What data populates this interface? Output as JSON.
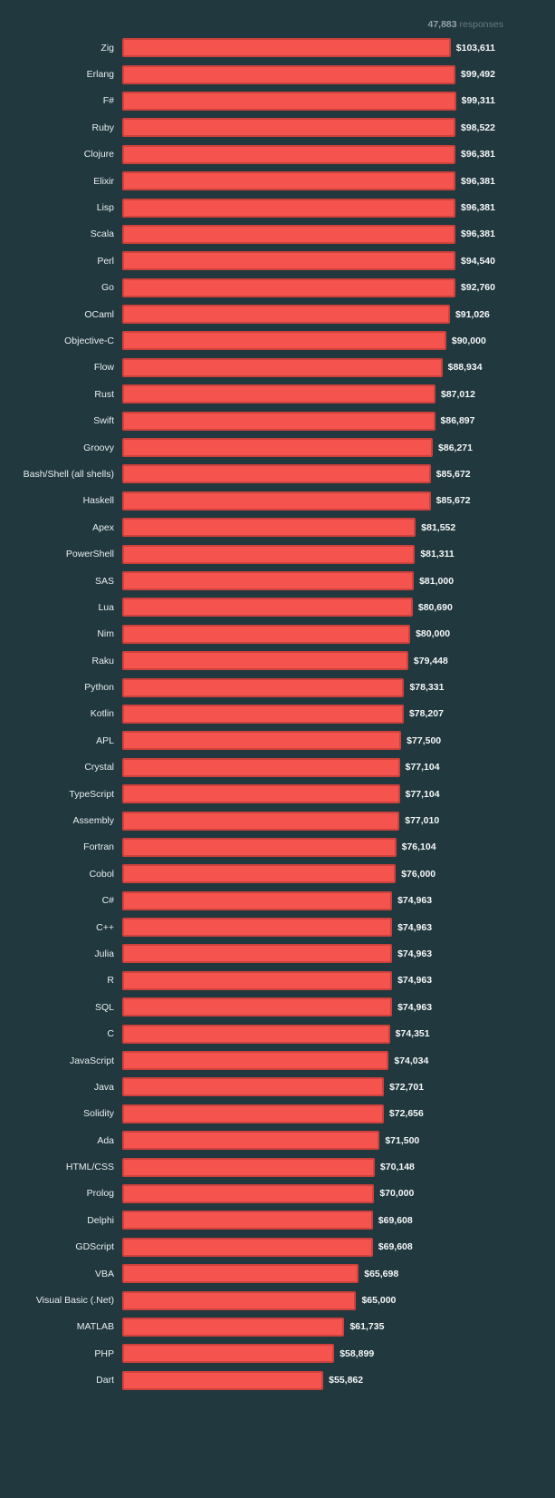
{
  "header": {
    "responses_count": "47,883",
    "responses_label": "responses"
  },
  "colors": {
    "background": "#20383e",
    "bar_fill": "#f4534e",
    "bar_border": "#cf413c",
    "category_text": "#e9eef0",
    "value_text": "#f5f8f8",
    "responses_count_color": "#93a2a6",
    "responses_word_color": "#6b7c80"
  },
  "chart_data": {
    "type": "bar",
    "orientation": "horizontal",
    "title": "",
    "xlabel": "",
    "ylabel": "",
    "annotation": "47,883 responses",
    "legend": "none",
    "grid": false,
    "xlim": [
      0,
      103611
    ],
    "categories": [
      "Zig",
      "Erlang",
      "F#",
      "Ruby",
      "Clojure",
      "Elixir",
      "Lisp",
      "Scala",
      "Perl",
      "Go",
      "OCaml",
      "Objective-C",
      "Flow",
      "Rust",
      "Swift",
      "Groovy",
      "Bash/Shell (all shells)",
      "Haskell",
      "Apex",
      "PowerShell",
      "SAS",
      "Lua",
      "Nim",
      "Raku",
      "Python",
      "Kotlin",
      "APL",
      "Crystal",
      "TypeScript",
      "Assembly",
      "Fortran",
      "Cobol",
      "C#",
      "C++",
      "Julia",
      "R",
      "SQL",
      "C",
      "JavaScript",
      "Java",
      "Solidity",
      "Ada",
      "HTML/CSS",
      "Prolog",
      "Delphi",
      "GDScript",
      "VBA",
      "Visual Basic (.Net)",
      "MATLAB",
      "PHP",
      "Dart"
    ],
    "values": [
      103611,
      99492,
      99311,
      98522,
      96381,
      96381,
      96381,
      96381,
      94540,
      92760,
      91026,
      90000,
      88934,
      87012,
      86897,
      86271,
      85672,
      85672,
      81552,
      81311,
      81000,
      80690,
      80000,
      79448,
      78331,
      78207,
      77500,
      77104,
      77104,
      77010,
      76104,
      76000,
      74963,
      74963,
      74963,
      74963,
      74963,
      74351,
      74034,
      72701,
      72656,
      71500,
      70148,
      70000,
      69608,
      69608,
      65698,
      65000,
      61735,
      58899,
      55862
    ],
    "value_labels": [
      "$103,611",
      "$99,492",
      "$99,311",
      "$98,522",
      "$96,381",
      "$96,381",
      "$96,381",
      "$96,381",
      "$94,540",
      "$92,760",
      "$91,026",
      "$90,000",
      "$88,934",
      "$87,012",
      "$86,897",
      "$86,271",
      "$85,672",
      "$85,672",
      "$81,552",
      "$81,311",
      "$81,000",
      "$80,690",
      "$80,000",
      "$79,448",
      "$78,331",
      "$78,207",
      "$77,500",
      "$77,104",
      "$77,104",
      "$77,010",
      "$76,104",
      "$76,000",
      "$74,963",
      "$74,963",
      "$74,963",
      "$74,963",
      "$74,963",
      "$74,351",
      "$74,034",
      "$72,701",
      "$72,656",
      "$71,500",
      "$70,148",
      "$70,000",
      "$69,608",
      "$69,608",
      "$65,698",
      "$65,000",
      "$61,735",
      "$58,899",
      "$55,862"
    ]
  }
}
